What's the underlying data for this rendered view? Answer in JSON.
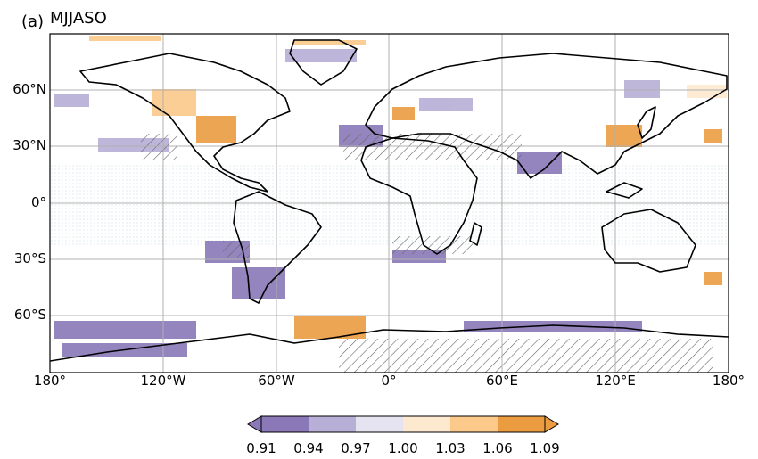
{
  "panel": {
    "label": "(a)",
    "title": "MJJASO"
  },
  "lat_labels": [
    "60°N",
    "30°N",
    "0°",
    "30°S",
    "60°S"
  ],
  "lon_labels": [
    "180°",
    "120°W",
    "60°W",
    "0°",
    "60°E",
    "120°E",
    "180°"
  ],
  "colorbar": {
    "tick_labels": [
      "0.91",
      "0.94",
      "0.97",
      "1.00",
      "1.03",
      "1.06",
      "1.09"
    ],
    "colors": [
      "#8a78b8",
      "#b7afd6",
      "#e5e3f0",
      "#fde9cf",
      "#fbc98a",
      "#eb9c41"
    ],
    "extend_min_color": "#8a78b8",
    "extend_max_color": "#eb9c41"
  },
  "colors": {
    "coastline": "#000000",
    "grid": "#b0b0b0",
    "hatch": "#666666",
    "stipple": "#cfe0e6"
  }
}
